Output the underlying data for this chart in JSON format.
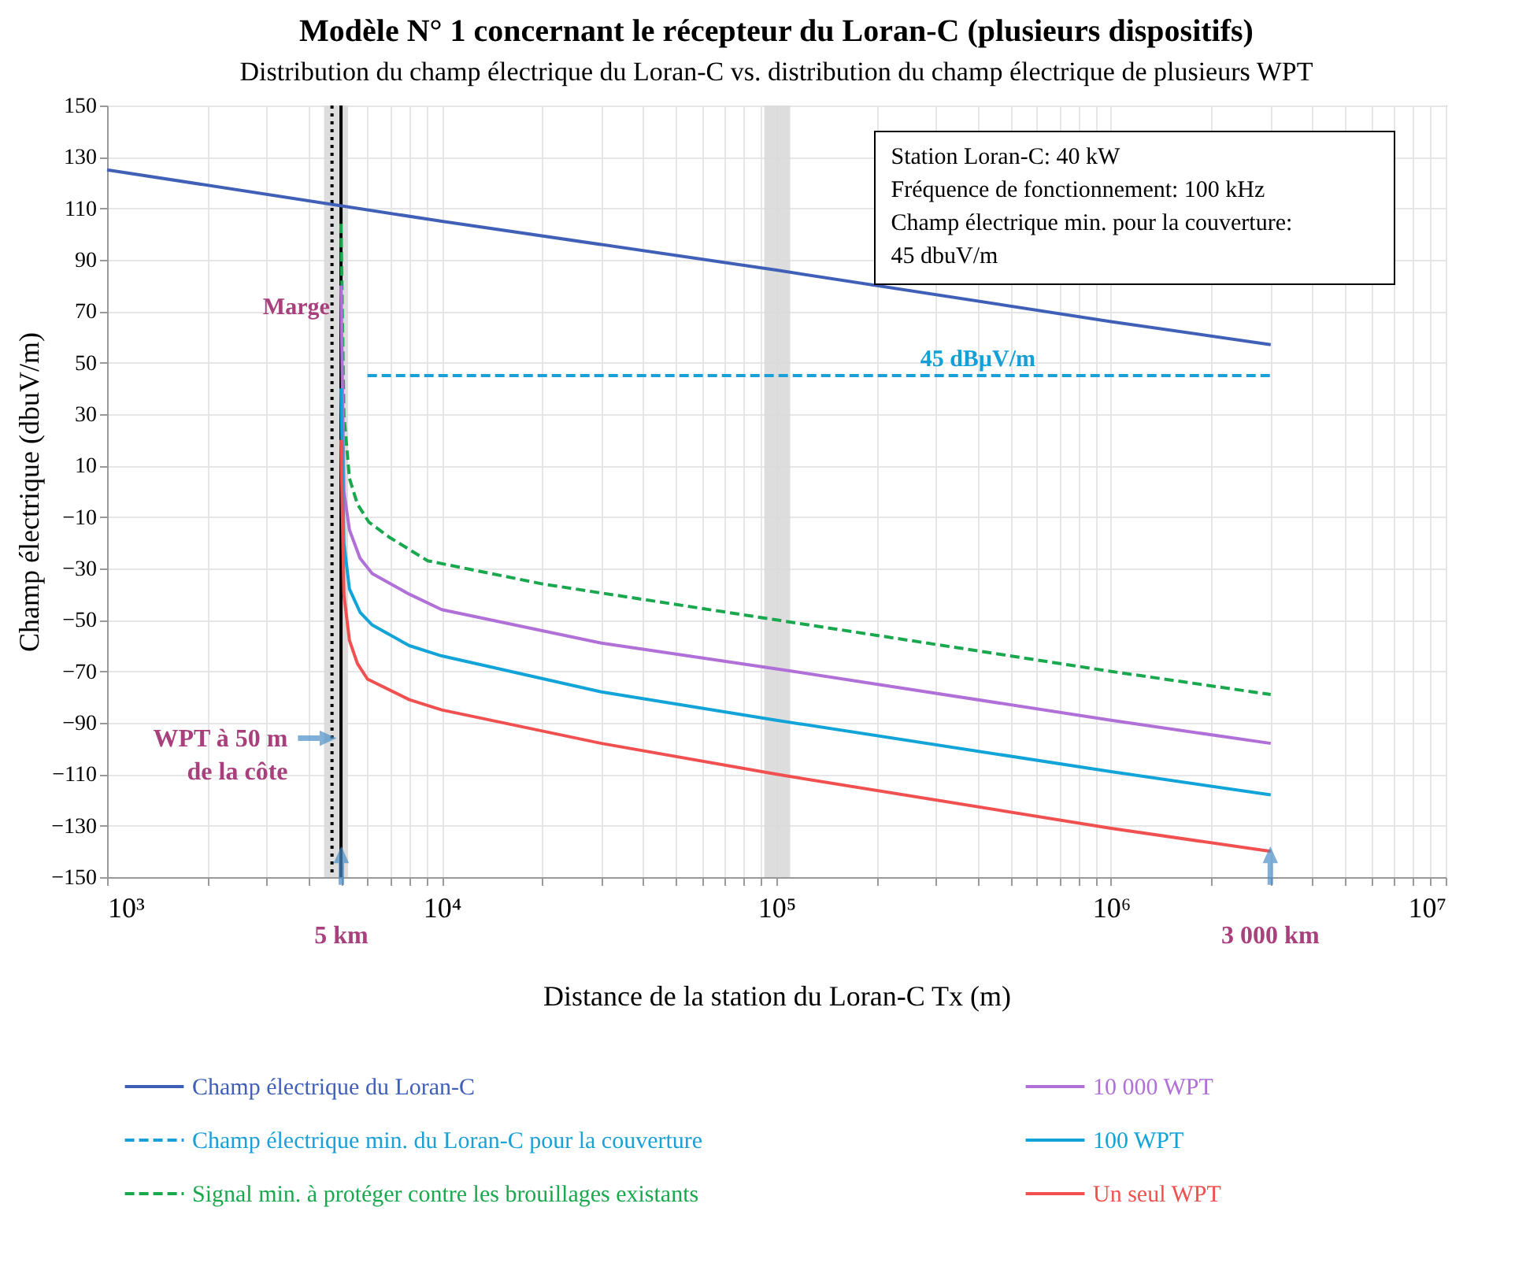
{
  "chart_data": {
    "type": "line",
    "title": "Modèle N° 1 concernant le récepteur du Loran-C (plusieurs dispositifs)",
    "subtitle": "Distribution du champ électrique du Loran-C vs. distribution du champ électrique de plusieurs WPT",
    "xlabel": "Distance de la station du Loran-C Tx (m)",
    "ylabel": "Champ électrique (dbuV/m)",
    "log": "x",
    "grid": true,
    "legend": "bottom",
    "xlim": [
      1000,
      10000000
    ],
    "ylim": [
      -150,
      150
    ],
    "xticks": [
      {
        "value": 1000,
        "label": "10³"
      },
      {
        "value": 2000,
        "label": null
      },
      {
        "value": 3000,
        "label": null
      },
      {
        "value": 4000,
        "label": null
      },
      {
        "value": 5000,
        "label": null
      },
      {
        "value": 6000,
        "label": null
      },
      {
        "value": 7000,
        "label": null
      },
      {
        "value": 8000,
        "label": null
      },
      {
        "value": 9000,
        "label": null
      },
      {
        "value": 10000,
        "label": "10⁴"
      },
      {
        "value": 20000,
        "label": null
      },
      {
        "value": 30000,
        "label": null
      },
      {
        "value": 40000,
        "label": null
      },
      {
        "value": 50000,
        "label": null
      },
      {
        "value": 60000,
        "label": null
      },
      {
        "value": 70000,
        "label": null
      },
      {
        "value": 80000,
        "label": null
      },
      {
        "value": 90000,
        "label": null
      },
      {
        "value": 100000,
        "label": "10⁵"
      },
      {
        "value": 200000,
        "label": null
      },
      {
        "value": 300000,
        "label": null
      },
      {
        "value": 400000,
        "label": null
      },
      {
        "value": 500000,
        "label": null
      },
      {
        "value": 600000,
        "label": null
      },
      {
        "value": 700000,
        "label": null
      },
      {
        "value": 800000,
        "label": null
      },
      {
        "value": 900000,
        "label": null
      },
      {
        "value": 1000000,
        "label": "10⁶"
      },
      {
        "value": 2000000,
        "label": null
      },
      {
        "value": 3000000,
        "label": null
      },
      {
        "value": 4000000,
        "label": null
      },
      {
        "value": 5000000,
        "label": null
      },
      {
        "value": 6000000,
        "label": null
      },
      {
        "value": 7000000,
        "label": null
      },
      {
        "value": 8000000,
        "label": null
      },
      {
        "value": 9000000,
        "label": null
      },
      {
        "value": 10000000,
        "label": "10⁷"
      }
    ],
    "yticks": [
      150,
      130,
      110,
      90,
      70,
      50,
      30,
      10,
      -10,
      -30,
      -50,
      -70,
      -90,
      -110,
      -130,
      -150
    ],
    "series": [
      {
        "name": "Champ électrique du Loran-C",
        "color": "#4060b8",
        "line_style": "solid",
        "x": [
          1000,
          10000,
          100000,
          1000000,
          3000000
        ],
        "values": [
          125,
          105,
          86,
          66,
          57
        ]
      },
      {
        "name": "Champ électrique min. du Loran-C pour la couverture",
        "color": "#1a9fd6",
        "line_style": "dashed",
        "x": [
          6000,
          3000000
        ],
        "values": [
          45,
          45
        ]
      },
      {
        "name": "Signal min. à protéger contre les brouillages existants",
        "color": "#1aa84e",
        "line_style": "dashed",
        "x": [
          5000,
          5100,
          5300,
          5600,
          6060,
          7000,
          9080,
          20000,
          100000,
          1000000,
          3000000
        ],
        "values": [
          104,
          30,
          5,
          -5,
          -12,
          -18,
          -27,
          -36,
          -50,
          -70,
          -79
        ]
      },
      {
        "name": "10 000 WPT",
        "color": "#b070d8",
        "line_style": "solid",
        "x": [
          5000,
          5100,
          5300,
          5700,
          6200,
          8000,
          10000,
          30000,
          100000,
          1000000,
          3000000
        ],
        "values": [
          80,
          0,
          -15,
          -26,
          -32,
          -40,
          -46,
          -59,
          -69,
          -89,
          -98
        ]
      },
      {
        "name": "100 WPT",
        "color": "#12a4d8",
        "line_style": "solid",
        "x": [
          5000,
          5100,
          5300,
          5700,
          6200,
          8000,
          10000,
          30000,
          100000,
          1000000,
          3000000
        ],
        "values": [
          40,
          -20,
          -38,
          -47,
          -52,
          -60,
          -64,
          -78,
          -89,
          -109,
          -118
        ]
      },
      {
        "name": "Un seul WPT",
        "color": "#f05050",
        "line_style": "solid",
        "x": [
          5000,
          5100,
          5300,
          5600,
          6000,
          8000,
          10000,
          30000,
          100000,
          1000000,
          3000000
        ],
        "values": [
          20,
          -40,
          -58,
          -67,
          -73,
          -81,
          -85,
          -98,
          -110,
          -131,
          -140
        ]
      }
    ],
    "bands": [
      {
        "axis": "x",
        "from": 4450,
        "to": 5250,
        "label": "Marge",
        "color": "#d9d9d9"
      },
      {
        "axis": "x",
        "from": 92000,
        "to": 110000,
        "color": "#d9d9d9"
      }
    ],
    "ref_lines": [
      {
        "axis": "x",
        "value": 5000,
        "color": "#000000",
        "line_style": "solid"
      },
      {
        "axis": "x",
        "value": 4700,
        "color": "#000000",
        "line_style": "dotted"
      }
    ],
    "annotations": [
      "Station Loran-C: 40 kW\nFréquence de fonctionnement: 100 kHz\nChamp électrique min. pour la couverture:\n45 dbuV/m",
      {
        "text": "45 dBµV/m",
        "x": 400000,
        "y": 45
      },
      "WPT à 50 m\nde la côte",
      "5 km",
      "3 000 km"
    ]
  }
}
